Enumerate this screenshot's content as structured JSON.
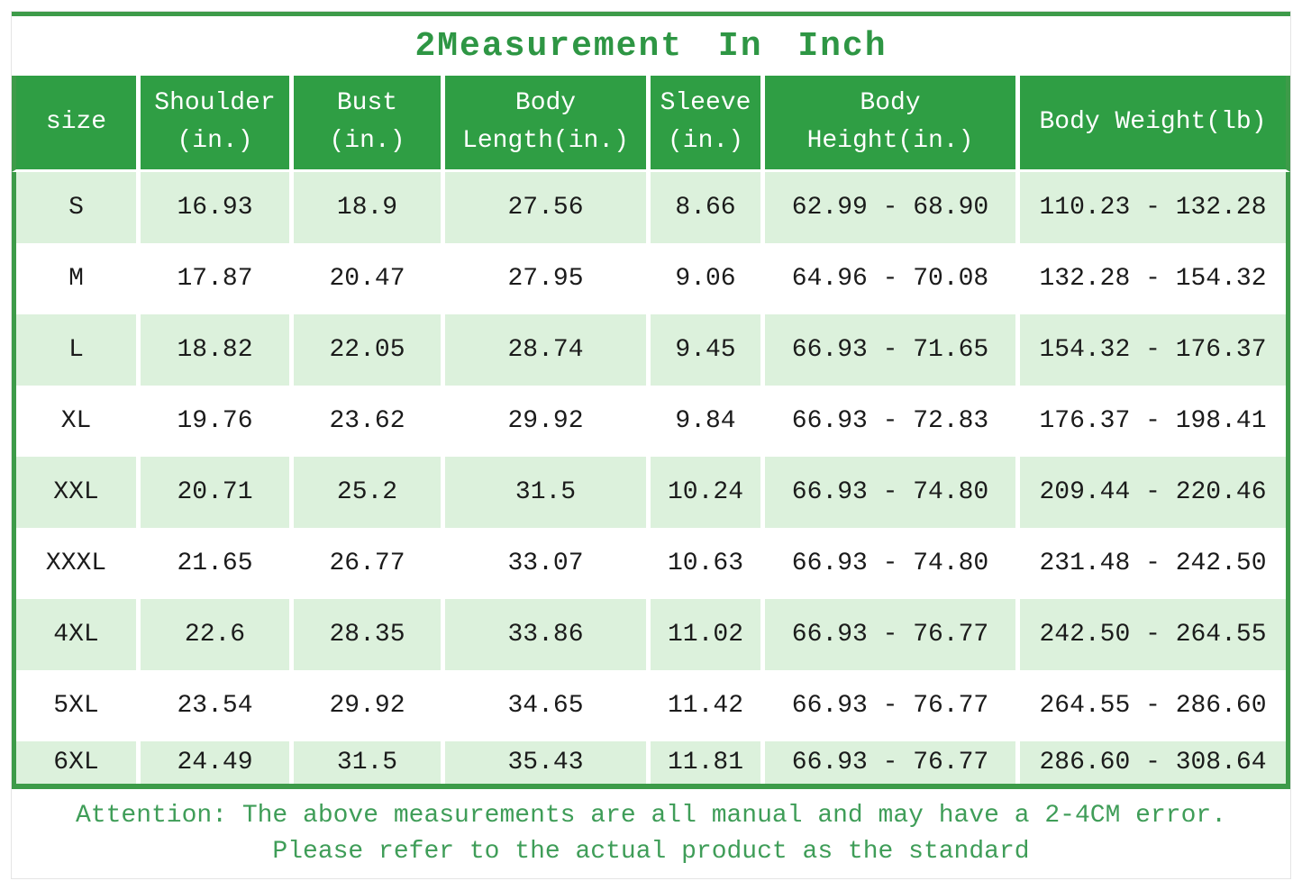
{
  "title": "2Measurement In Inch",
  "attention": {
    "line1": "Attention: The above measurements are all manual and may have a 2-4CM error.",
    "line2": "Please refer to the actual product as the standard"
  },
  "colors": {
    "header_green": "#2f9e44",
    "border_green": "#3d9b49",
    "row_tint_green": "#dcf1dc",
    "title_text_green": "#2e9644",
    "attention_text_green": "#3f9d58",
    "data_text": "#1b1b1b",
    "outer_border_gray": "#e4e4e4"
  },
  "chart_data": {
    "type": "table",
    "title": "2Measurement In Inch",
    "columns": [
      "size",
      "Shoulder (in.)",
      "Bust (in.)",
      "Body Length(in.)",
      "Sleeve (in.)",
      "Body Height(in.)",
      "Body Weight(lb)"
    ],
    "columns_display": [
      "size",
      "Shoulder\n(in.)",
      "Bust\n(in.)",
      "Body\nLength(in.)",
      "Sleeve\n(in.)",
      "Body\nHeight(in.)",
      "Body Weight(lb)"
    ],
    "rows": [
      [
        "S",
        "16.93",
        "18.9",
        "27.56",
        "8.66",
        "62.99 - 68.90",
        "110.23 - 132.28"
      ],
      [
        "M",
        "17.87",
        "20.47",
        "27.95",
        "9.06",
        "64.96 - 70.08",
        "132.28 - 154.32"
      ],
      [
        "L",
        "18.82",
        "22.05",
        "28.74",
        "9.45",
        "66.93 - 71.65",
        "154.32 - 176.37"
      ],
      [
        "XL",
        "19.76",
        "23.62",
        "29.92",
        "9.84",
        "66.93 - 72.83",
        "176.37 - 198.41"
      ],
      [
        "XXL",
        "20.71",
        "25.2",
        "31.5",
        "10.24",
        "66.93 - 74.80",
        "209.44 - 220.46"
      ],
      [
        "XXXL",
        "21.65",
        "26.77",
        "33.07",
        "10.63",
        "66.93 - 74.80",
        "231.48 - 242.50"
      ],
      [
        "4XL",
        "22.6",
        "28.35",
        "33.86",
        "11.02",
        "66.93 - 76.77",
        "242.50 - 264.55"
      ],
      [
        "5XL",
        "23.54",
        "29.92",
        "34.65",
        "11.42",
        "66.93 - 76.77",
        "264.55 - 286.60"
      ],
      [
        "6XL",
        "24.49",
        "31.5",
        "35.43",
        "11.81",
        "66.93 - 76.77",
        "286.60 - 308.64"
      ]
    ]
  }
}
